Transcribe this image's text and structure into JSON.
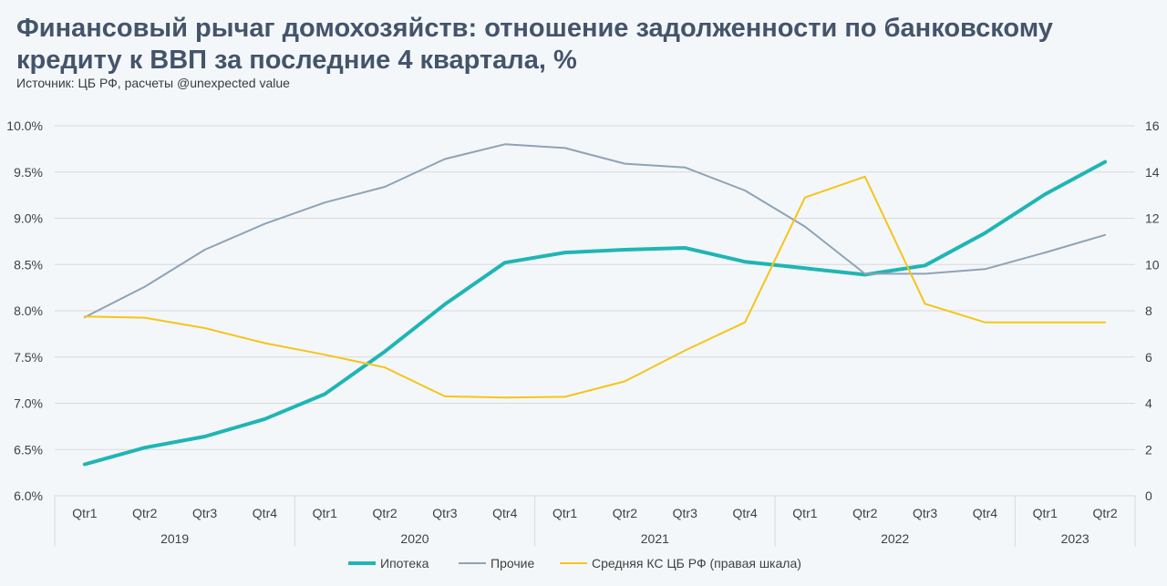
{
  "chart_data": {
    "type": "line",
    "title": "Финансовый рычаг домохозяйств: отношение задолженности по банковскому кредиту к ВВП за последние 4 квартала, %",
    "subtitle": "Источник: ЦБ РФ, расчеты @unexpected value",
    "categories": [
      "Qtr1",
      "Qtr2",
      "Qtr3",
      "Qtr4",
      "Qtr1",
      "Qtr2",
      "Qtr3",
      "Qtr4",
      "Qtr1",
      "Qtr2",
      "Qtr3",
      "Qtr4",
      "Qtr1",
      "Qtr2",
      "Qtr3",
      "Qtr4",
      "Qtr1",
      "Qtr2"
    ],
    "years": [
      {
        "label": "2019",
        "count": 4
      },
      {
        "label": "2020",
        "count": 4
      },
      {
        "label": "2021",
        "count": 4
      },
      {
        "label": "2022",
        "count": 4
      },
      {
        "label": "2023",
        "count": 2
      }
    ],
    "y_left": {
      "ticks": [
        "10.0%",
        "9.5%",
        "9.0%",
        "8.5%",
        "8.0%",
        "7.5%",
        "7.0%",
        "6.5%",
        "6.0%"
      ],
      "range": [
        6.0,
        10.0
      ]
    },
    "y_right": {
      "ticks": [
        "16",
        "14",
        "12",
        "10",
        "8",
        "6",
        "4",
        "2",
        "0"
      ],
      "range": [
        0,
        16
      ]
    },
    "grid": true,
    "legend_position": "bottom",
    "series": [
      {
        "name": "Ипотека",
        "axis": "left",
        "color": "#1fb5b5",
        "width": 4,
        "values": [
          6.34,
          6.52,
          6.64,
          6.83,
          7.1,
          7.56,
          8.07,
          8.52,
          8.63,
          8.66,
          8.68,
          8.53,
          8.46,
          8.39,
          8.49,
          8.84,
          9.26,
          9.61
        ]
      },
      {
        "name": "Прочие",
        "axis": "left",
        "color": "#8ea3b5",
        "width": 2,
        "values": [
          7.93,
          8.26,
          8.66,
          8.94,
          9.17,
          9.34,
          9.64,
          9.8,
          9.76,
          9.59,
          9.55,
          9.3,
          8.91,
          8.4,
          8.4,
          8.45,
          8.63,
          8.82
        ]
      },
      {
        "name": "Средняя КС ЦБ РФ (правая шкала)",
        "axis": "right",
        "color": "#f5c518",
        "width": 2,
        "values": [
          7.75,
          7.7,
          7.25,
          6.6,
          6.1,
          5.55,
          4.3,
          4.25,
          4.28,
          4.95,
          6.28,
          7.5,
          12.9,
          13.8,
          8.3,
          7.5,
          7.5,
          7.5
        ]
      }
    ]
  }
}
